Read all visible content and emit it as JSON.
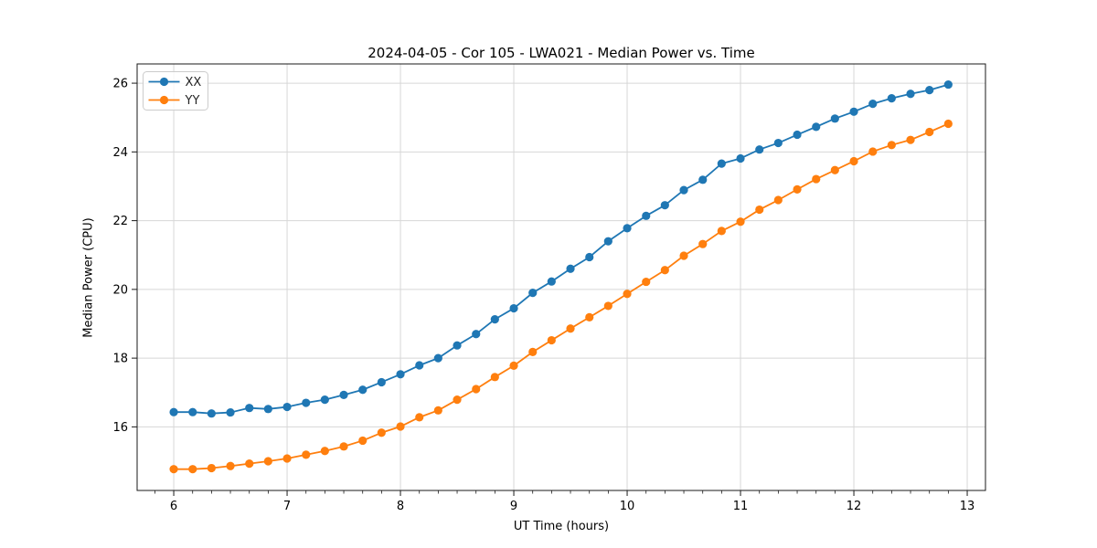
{
  "chart": {
    "title": "2024-04-05 - Cor 105 - LWA021 - Median Power vs. Time",
    "xlabel": "UT Time (hours)",
    "ylabel": "Median Power (CPU)"
  },
  "chart_data": {
    "type": "line",
    "title": "2024-04-05 - Cor 105 - LWA021 - Median Power vs. Time",
    "xlabel": "UT Time (hours)",
    "ylabel": "Median Power (CPU)",
    "x": [
      6.0,
      6.167,
      6.333,
      6.5,
      6.667,
      6.833,
      7.0,
      7.167,
      7.333,
      7.5,
      7.667,
      7.833,
      8.0,
      8.167,
      8.333,
      8.5,
      8.667,
      8.833,
      9.0,
      9.167,
      9.333,
      9.5,
      9.667,
      9.833,
      10.0,
      10.167,
      10.333,
      10.5,
      10.667,
      10.833,
      11.0,
      11.167,
      11.333,
      11.5,
      11.667,
      11.833,
      12.0,
      12.167,
      12.333,
      12.5,
      12.667,
      12.833
    ],
    "series": [
      {
        "name": "XX",
        "color": "#1f77b4",
        "values": [
          16.43,
          16.43,
          16.39,
          16.42,
          16.55,
          16.52,
          16.58,
          16.7,
          16.79,
          16.93,
          17.08,
          17.3,
          17.53,
          17.79,
          18.0,
          18.37,
          18.7,
          19.13,
          19.45,
          19.9,
          20.23,
          20.6,
          20.94,
          21.4,
          21.78,
          22.14,
          22.45,
          22.89,
          23.19,
          23.66,
          23.81,
          24.07,
          24.26,
          24.5,
          24.73,
          24.97,
          25.17,
          25.4,
          25.56,
          25.69,
          25.8,
          25.96
        ]
      },
      {
        "name": "YY",
        "color": "#ff7f0e",
        "values": [
          14.77,
          14.77,
          14.8,
          14.86,
          14.93,
          15.0,
          15.08,
          15.19,
          15.3,
          15.43,
          15.6,
          15.83,
          16.01,
          16.28,
          16.48,
          16.79,
          17.1,
          17.45,
          17.78,
          18.18,
          18.52,
          18.86,
          19.19,
          19.52,
          19.87,
          20.22,
          20.56,
          20.98,
          21.32,
          21.7,
          21.97,
          22.32,
          22.6,
          22.91,
          23.21,
          23.47,
          23.73,
          24.01,
          24.2,
          24.35,
          24.58,
          24.82
        ]
      }
    ],
    "xlim": [
      5.677,
      13.161
    ],
    "ylim": [
      14.15,
      26.56
    ],
    "xticks": [
      6,
      7,
      8,
      9,
      10,
      11,
      12,
      13
    ],
    "xtick_labels": [
      "6",
      "7",
      "8",
      "9",
      "10",
      "11",
      "12",
      "13"
    ],
    "yticks": [
      16,
      18,
      20,
      22,
      24,
      26
    ],
    "ytick_labels": [
      "16",
      "18",
      "20",
      "22",
      "24",
      "26"
    ],
    "minor_xtick_step": 0.1667,
    "grid": true,
    "grid_color": "#d7d7d7",
    "legend_position": "upper left",
    "legend_labels": [
      "XX",
      "YY"
    ],
    "marker": "circle"
  }
}
